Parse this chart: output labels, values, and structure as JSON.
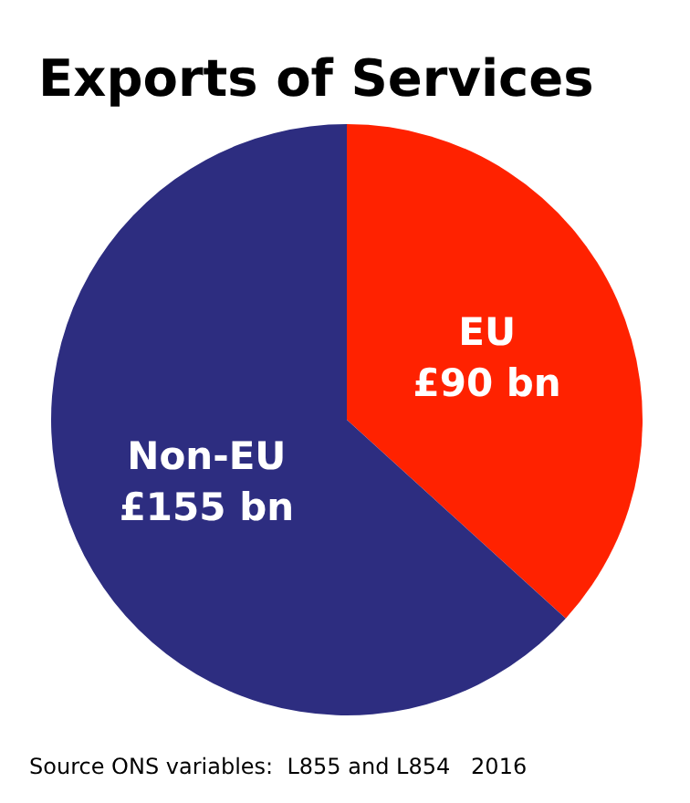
{
  "chart_data": {
    "type": "pie",
    "title": "Exports of Services",
    "categories": [
      "EU",
      "Non-EU"
    ],
    "values": [
      90,
      155
    ],
    "colors": [
      "#ff2200",
      "#2d2d80"
    ],
    "value_labels": [
      "£90 bn",
      "£155 bn"
    ],
    "annotations": [
      "Source ONS variables:  L855 and L854   2016"
    ]
  }
}
